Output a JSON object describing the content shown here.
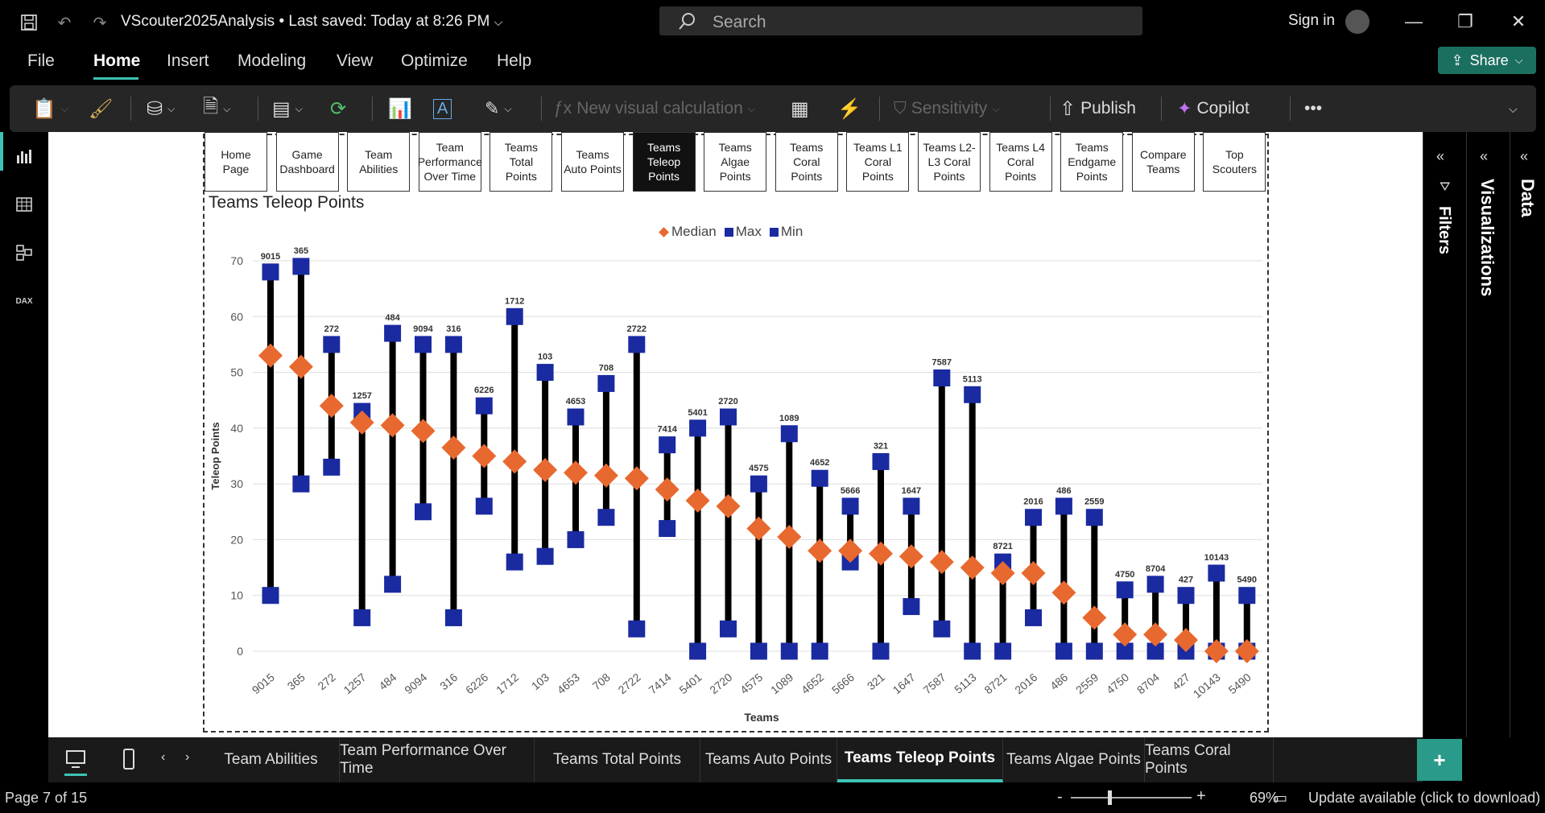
{
  "titlebar": {
    "document_title": "VScouter2025Analysis • Last saved: Today at 8:26 PM",
    "search_placeholder": "Search",
    "sign_in": "Sign in"
  },
  "menu": {
    "items": [
      "File",
      "Home",
      "Insert",
      "Modeling",
      "View",
      "Optimize",
      "Help"
    ],
    "active": "Home"
  },
  "share_label": "Share",
  "ribbon": {
    "new_visual_calc": "New visual calculation",
    "sensitivity": "Sensitivity",
    "publish": "Publish",
    "copilot": "Copilot",
    "more": "•••"
  },
  "report_nav": [
    "Home Page",
    "Game Dashboard",
    "Team Abilities",
    "Team Performance Over Time",
    "Teams Total Points",
    "Teams Auto Points",
    "Teams Teleop Points",
    "Teams Algae Points",
    "Teams Coral Points",
    "Teams L1 Coral Points",
    "Teams L2-L3 Coral Points",
    "Teams L4 Coral Points",
    "Teams Endgame Points",
    "Compare Teams",
    "Top Scouters"
  ],
  "report_nav_selected": "Teams Teleop Points",
  "right_panels": {
    "filters": "Filters",
    "visualizations": "Visualizations",
    "data": "Data"
  },
  "page_tabs": [
    "Team Abilities",
    "Team Performance Over Time",
    "Teams Total Points",
    "Teams Auto Points",
    "Teams Teleop Points",
    "Teams Algae Points",
    "Teams Coral Points"
  ],
  "page_tab_selected": "Teams Teleop Points",
  "status": {
    "page": "Page 7 of 15",
    "zoom": "69%",
    "update": "Update available (click to download)"
  },
  "colors": {
    "median": "#e8692f",
    "maxmin": "#1a2aa0",
    "accent": "#3cc4b4"
  },
  "chart_data": {
    "type": "scatter",
    "title": "Teams Teleop Points",
    "xlabel": "Teams",
    "ylabel": "Teleop Points",
    "ylim": [
      0,
      70
    ],
    "yticks": [
      0,
      10,
      20,
      30,
      40,
      50,
      60,
      70
    ],
    "legend": [
      "Median",
      "Max",
      "Min"
    ],
    "legend_position": "top-center",
    "categories": [
      "9015",
      "365",
      "272",
      "1257",
      "484",
      "9094",
      "316",
      "6226",
      "1712",
      "103",
      "4653",
      "708",
      "2722",
      "7414",
      "5401",
      "2720",
      "4575",
      "1089",
      "4652",
      "5666",
      "321",
      "1647",
      "7587",
      "5113",
      "8721",
      "2016",
      "486",
      "2559",
      "4750",
      "8704",
      "427",
      "10143",
      "5490"
    ],
    "series": [
      {
        "name": "Median",
        "values": [
          53,
          51,
          44,
          41,
          40.5,
          39.5,
          36.5,
          35,
          34,
          32.5,
          32,
          31.5,
          31,
          29,
          27,
          26,
          22,
          20.5,
          18,
          18,
          17.5,
          17,
          16,
          15,
          14,
          14,
          10.5,
          6,
          3,
          3,
          2,
          0,
          0
        ]
      },
      {
        "name": "Max",
        "values": [
          68,
          69,
          55,
          43,
          57,
          55,
          55,
          44,
          60,
          50,
          42,
          48,
          55,
          37,
          40,
          42,
          30,
          39,
          31,
          26,
          34,
          26,
          49,
          46,
          16,
          24,
          26,
          24,
          11,
          12,
          10,
          14,
          10
        ]
      },
      {
        "name": "Min",
        "values": [
          10,
          30,
          33,
          6,
          12,
          25,
          6,
          26,
          16,
          17,
          20,
          24,
          4,
          22,
          0,
          4,
          0,
          0,
          0,
          16,
          0,
          8,
          4,
          0,
          0,
          6,
          0,
          0,
          0,
          0,
          0,
          0,
          0
        ]
      }
    ]
  }
}
